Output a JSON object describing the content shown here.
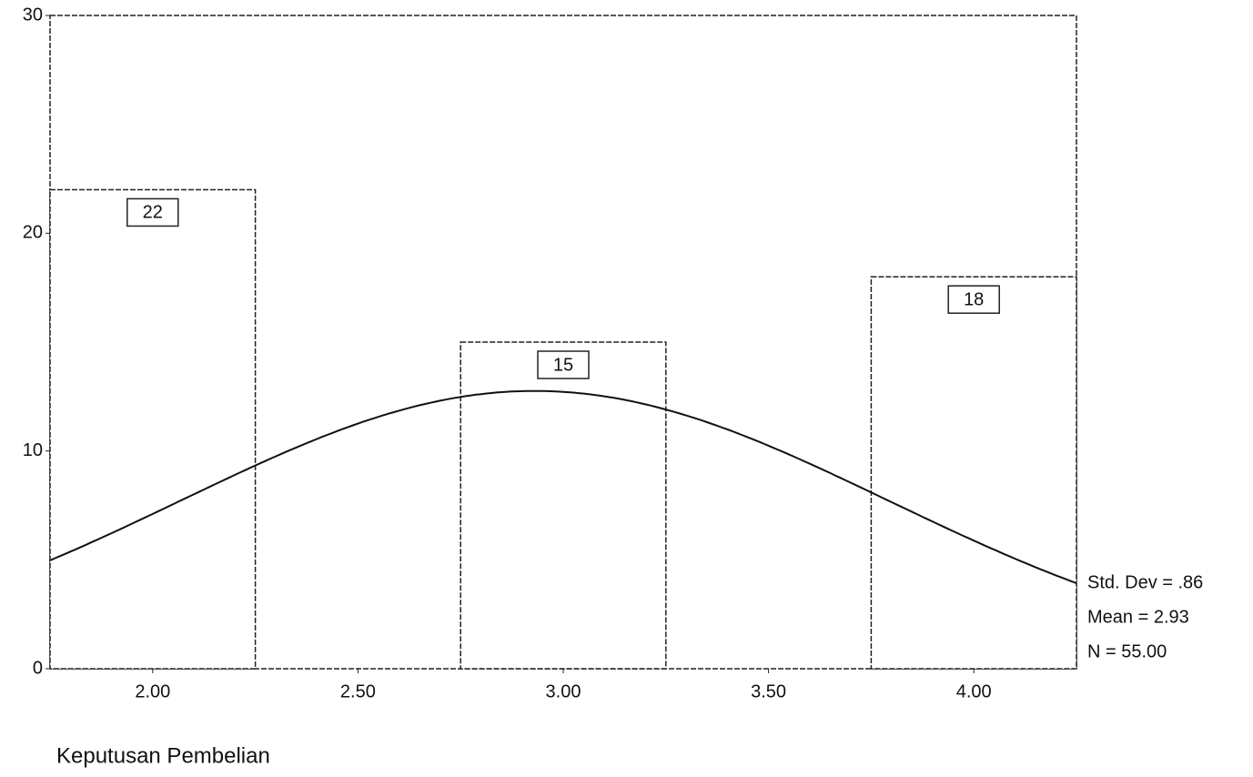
{
  "chart_data": {
    "type": "histogram",
    "x_label": "Keputusan Pembelian",
    "bins": [
      1.75,
      2.25,
      2.75,
      3.25,
      3.75,
      4.25
    ],
    "counts": [
      22,
      0,
      15,
      0,
      18
    ],
    "color": "#ffffff",
    "xlim": [
      1.75,
      4.25
    ],
    "xticks": [
      {
        "value": 2,
        "label": "2.00"
      },
      {
        "value": 2.5,
        "label": "2.50"
      },
      {
        "value": 3,
        "label": "3.00"
      },
      {
        "value": 3.5,
        "label": "3.50"
      },
      {
        "value": 4,
        "label": "4.00"
      }
    ],
    "ylim": [
      0,
      30
    ],
    "yticks": [
      0,
      10,
      20,
      30
    ],
    "normal_curve": {
      "std_dev": {
        "value": 0.86,
        "label": "Std. Dev = .86"
      },
      "mean": {
        "value": 2.93,
        "label": "Mean = 2.93"
      },
      "n": {
        "value": 55,
        "label": "N = 55.00"
      }
    }
  }
}
